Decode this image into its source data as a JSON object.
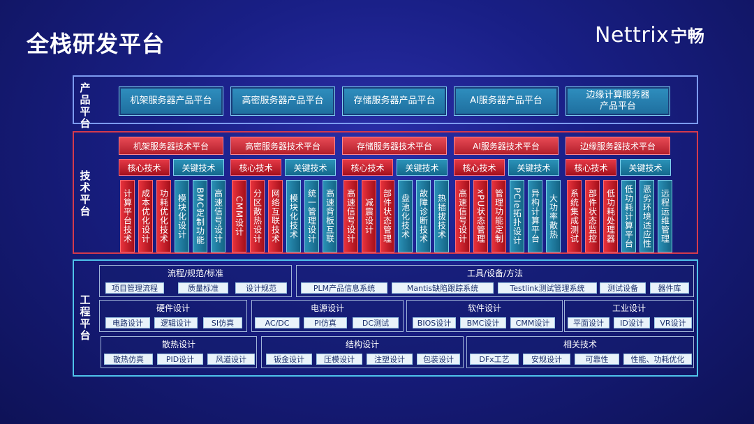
{
  "page_title": "全栈研发平台",
  "logo": {
    "brand": "Nettrix",
    "cn": "宁畅"
  },
  "product_platform": {
    "label": "产品平台",
    "items": [
      "机架服务器产品平台",
      "高密服务器产品平台",
      "存储服务器产品平台",
      "AI服务器产品平台",
      "边缘计算服务器产品平台"
    ]
  },
  "tech_platform": {
    "label": "技术平台",
    "core_label": "核心技术",
    "key_label": "关键技术",
    "columns": [
      {
        "title": "机架服务器技术平台",
        "core": [
          "计算平台技术",
          "成本优化设计",
          "功耗优化技术"
        ],
        "key": [
          "模块化设计",
          "BMC定制功能",
          "高速信号设计"
        ]
      },
      {
        "title": "高密服务器技术平台",
        "core": [
          "CMM设计",
          "分区散热设计",
          "网络互联技术"
        ],
        "key": [
          "模块化技术",
          "统一管理设计",
          "高速背板互联"
        ]
      },
      {
        "title": "存储服务器技术平台",
        "core": [
          "高速信号设计",
          "减震设计",
          "部件状态管理"
        ],
        "key": [
          "盘池化技术",
          "故障诊断技术",
          "热插拔技术"
        ]
      },
      {
        "title": "AI服务器技术平台",
        "core": [
          "高速信号设计",
          "xPU状态管理",
          "管理功能定制"
        ],
        "key": [
          "PCIe拓扑设计",
          "异构计算平台",
          "大功率散热"
        ]
      },
      {
        "title": "边缘服务器技术平台",
        "core": [
          "系统集成测试",
          "部件状态监控",
          "低功耗处理器"
        ],
        "key": [
          "低功耗计算平台",
          "恶劣环境适应性",
          "远程运维管理"
        ]
      }
    ]
  },
  "eng_platform": {
    "label": "工程平台",
    "groups": [
      {
        "title": "流程/规范/标准",
        "items": [
          "项目管理流程",
          "质量标准",
          "设计规范"
        ]
      },
      {
        "title": "工具/设备/方法",
        "items": [
          "PLM产品信息系统",
          "Mantis缺陷跟踪系统",
          "Testlink测试管理系统",
          "测试设备",
          "器件库"
        ]
      },
      {
        "title": "硬件设计",
        "items": [
          "电路设计",
          "逻辑设计",
          "SI仿真"
        ]
      },
      {
        "title": "电源设计",
        "items": [
          "AC/DC",
          "PI仿真",
          "DC测试"
        ]
      },
      {
        "title": "软件设计",
        "items": [
          "BIOS设计",
          "BMC设计",
          "CMM设计"
        ]
      },
      {
        "title": "工业设计",
        "items": [
          "平面设计",
          "ID设计",
          "VR设计"
        ]
      },
      {
        "title": "散热设计",
        "items": [
          "散热仿真",
          "PID设计",
          "风道设计"
        ]
      },
      {
        "title": "结构设计",
        "items": [
          "钣金设计",
          "压模设计",
          "注塑设计",
          "包装设计"
        ]
      },
      {
        "title": "相关技术",
        "items": [
          "DFx工艺",
          "安规设计",
          "可靠性",
          "性能、功耗优化"
        ]
      }
    ]
  },
  "colors": {
    "background": "#191f86",
    "product_border": "#7c9bf0",
    "tech_border": "#d43a4c",
    "eng_border": "#4fc3ea",
    "core_red": "#e53845",
    "key_teal": "#2a92b8"
  }
}
